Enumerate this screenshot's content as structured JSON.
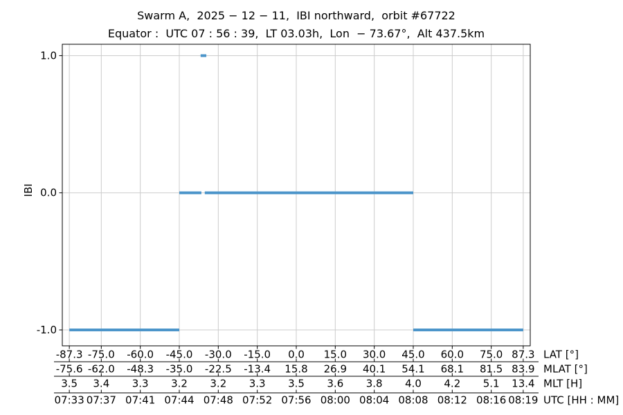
{
  "figure": {
    "title": "Swarm A,  2025 − 12 − 11,  IBI northward,  orbit #67722",
    "subtitle": "Equator :  UTC 07 : 56 : 39,  LT 03.03h,  Lon  − 73.67°,  Alt 437.5km"
  },
  "colors": {
    "line": "#4c95ca",
    "grid": "#cccccc",
    "axis": "#000000",
    "text": "#000000",
    "background": "#ffffff"
  },
  "chart_data": {
    "type": "line",
    "title": "Swarm A, 2025-12-11, IBI northward, orbit #67722",
    "subtitle": "Equator: UTC 07:56:39, LT 03.03h, Lon -73.67°, Alt 437.5km",
    "ylabel": "IBI",
    "ylim": [
      -1.12,
      1.08
    ],
    "yticks": [
      1.0,
      0.0,
      -1.0
    ],
    "ytick_labels": [
      "1.0",
      "0.0",
      "-1.0"
    ],
    "x_unit": "latitude_deg",
    "xlim": [
      -90,
      90
    ],
    "grid": true,
    "legend": false,
    "series": [
      {
        "name": "IBI",
        "style": "horizontal-step-segments",
        "segments": [
          {
            "ibi": -1,
            "lat_start": -87.3,
            "lat_end": -45.0
          },
          {
            "ibi": 0,
            "lat_start": -45.0,
            "lat_end": -36.5
          },
          {
            "ibi": 1,
            "lat_start": -36.8,
            "lat_end": -34.6
          },
          {
            "ibi": 0,
            "lat_start": -35.2,
            "lat_end": 45.0
          },
          {
            "ibi": -1,
            "lat_start": 45.0,
            "lat_end": 87.3
          }
        ]
      }
    ],
    "tick_positions_lat": [
      -87.3,
      -75.0,
      -60.0,
      -45.0,
      -30.0,
      -15.0,
      0.0,
      15.0,
      30.0,
      45.0,
      60.0,
      75.0,
      87.3
    ],
    "axis_rows": [
      {
        "label": "LAT [°]",
        "ticks": [
          "-87.3",
          "-75.0",
          "-60.0",
          "-45.0",
          "-30.0",
          "-15.0",
          "0.0",
          "15.0",
          "30.0",
          "45.0",
          "60.0",
          "75.0",
          "87.3"
        ]
      },
      {
        "label": "MLAT [°]",
        "ticks": [
          "-75.6",
          "-62.0",
          "-48.3",
          "-35.0",
          "-22.5",
          "-13.4",
          "15.8",
          "26.9",
          "40.1",
          "54.1",
          "68.1",
          "81.5",
          "83.9"
        ]
      },
      {
        "label": "MLT [H]",
        "ticks": [
          "3.5",
          "3.4",
          "3.3",
          "3.2",
          "3.2",
          "3.3",
          "3.5",
          "3.6",
          "3.8",
          "4.0",
          "4.2",
          "5.1",
          "13.4"
        ]
      },
      {
        "label": "UTC [HH : MM]",
        "ticks": [
          "07:33",
          "07:37",
          "07:41",
          "07:44",
          "07:48",
          "07:52",
          "07:56",
          "08:00",
          "08:04",
          "08:08",
          "08:12",
          "08:16",
          "08:19"
        ]
      }
    ]
  }
}
